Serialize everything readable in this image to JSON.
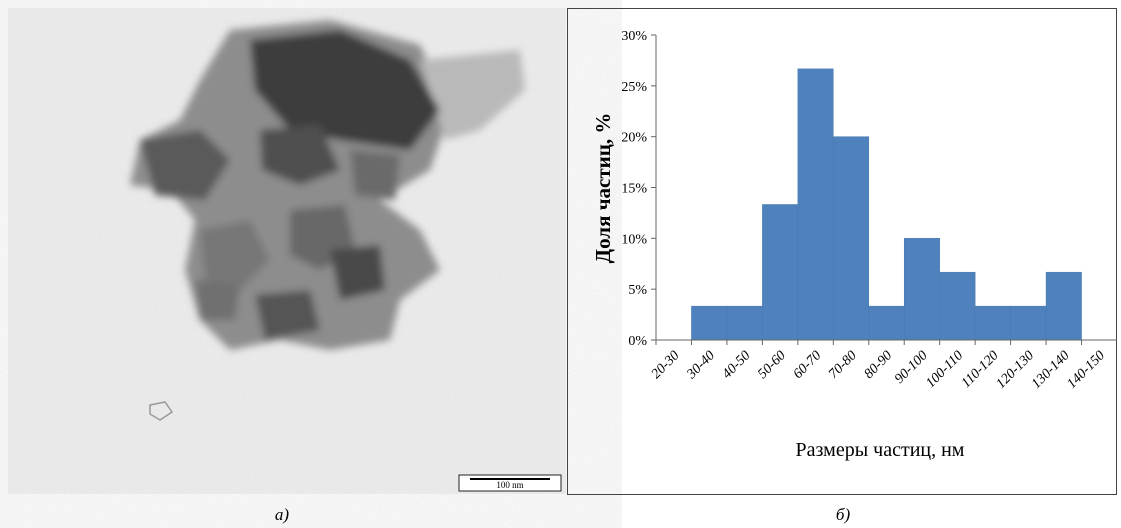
{
  "figure": {
    "scale_bar": "100 nm",
    "label_a": "а)",
    "label_b": "б)"
  },
  "chart_data": {
    "type": "bar",
    "categories": [
      "20-30",
      "30-40",
      "40-50",
      "50-60",
      "60-70",
      "70-80",
      "80-90",
      "90-100",
      "100-110",
      "110-120",
      "120-130",
      "130-140",
      "140-150"
    ],
    "values": [
      0,
      3.33,
      3.33,
      13.33,
      26.67,
      20,
      3.33,
      10,
      6.67,
      3.33,
      3.33,
      6.67,
      0
    ],
    "color": "#4f81bd",
    "x_label": "Размеры частиц, нм",
    "y_label": "Доля частиц, %",
    "ylim": [
      0,
      30
    ],
    "yticks": [
      {
        "value": 0,
        "label": "0%"
      },
      {
        "value": 5,
        "label": "5%"
      },
      {
        "value": 10,
        "label": "10%"
      },
      {
        "value": 15,
        "label": "15%"
      },
      {
        "value": 20,
        "label": "20%"
      },
      {
        "value": 25,
        "label": "25%"
      },
      {
        "value": 30,
        "label": "30%"
      }
    ],
    "grid": false
  }
}
